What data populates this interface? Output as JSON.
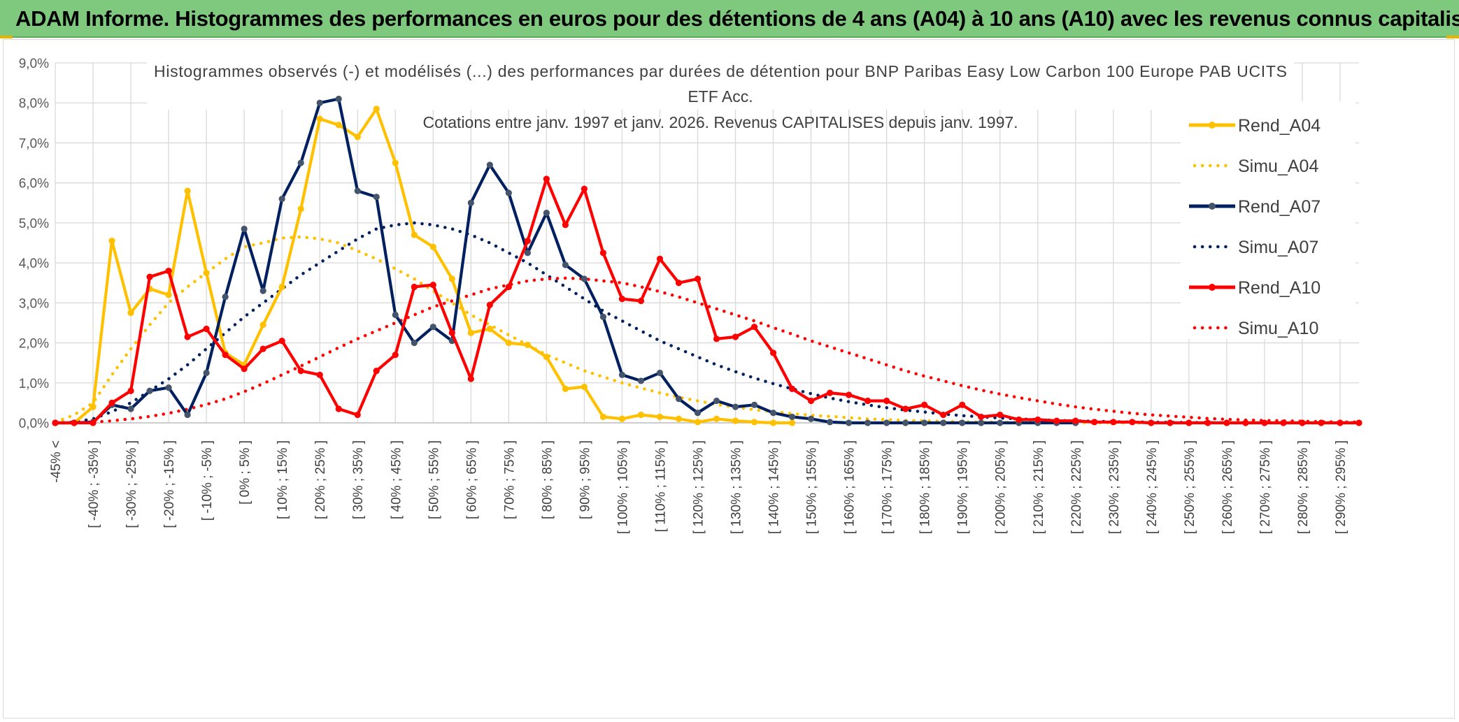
{
  "header": {
    "title": "ADAM Informe. Histogrammes des performances en euros pour des détentions de 4 ans (A04) à 10 ans (A10) avec les revenus connus capitalisés"
  },
  "chart_data": {
    "type": "line",
    "title_lines": [
      "Histogrammes observés (-) et modélisés (...) des performances par durées de détention pour BNP Paribas Easy Low Carbon 100 Europe PAB UCITS",
      "ETF Acc.",
      "Cotations entre janv. 1997 et janv. 2026. Revenus CAPITALISES depuis janv. 1997."
    ],
    "ylim": [
      0,
      9
    ],
    "y_ticks": [
      "0,0%",
      "1,0%",
      "2,0%",
      "3,0%",
      "4,0%",
      "5,0%",
      "6,0%",
      "7,0%",
      "8,0%",
      "9,0%"
    ],
    "grid": true,
    "legend_position": "top-right",
    "x_labels": [
      "-45% <",
      "[ -40% ; -35% ]",
      "[ -30% ; -25% ]",
      "[ -20% ; -15% ]",
      "[ -10% ; -5% ]",
      "[ 0% ; 5% ]",
      "[ 10% ; 15% ]",
      "[ 20% ; 25% ]",
      "[ 30% ; 35% ]",
      "[ 40% ; 45% ]",
      "[ 50% ; 55% ]",
      "[ 60% ; 65% ]",
      "[ 70% ; 75% ]",
      "[ 80% ; 85% ]",
      "[ 90% ; 95% ]",
      "[ 100% ; 105% ]",
      "[ 110% ; 115% ]",
      "[ 120% ; 125% ]",
      "[ 130% ; 135% ]",
      "[ 140% ; 145% ]",
      "[ 150% ; 155% ]",
      "[ 160% ; 165% ]",
      "[ 170% ; 175% ]",
      "[ 180% ; 185% ]",
      "[ 190% ; 195% ]",
      "[ 200% ; 205% ]",
      "[ 210% ; 215% ]",
      "[ 220% ; 225% ]",
      "[ 230% ; 235% ]",
      "[ 240% ; 245% ]",
      "[ 250% ; 255% ]",
      "[ 260% ; 265% ]",
      "[ 270% ; 275% ]",
      "[ 280% ; 285% ]",
      "[ 290% ; 295% ]"
    ],
    "x_label_step": 2,
    "series": [
      {
        "name": "Rend_A04",
        "style": "solid",
        "marker": true,
        "color": "#ffc000",
        "values": [
          0,
          0,
          0.4,
          4.55,
          2.75,
          3.35,
          3.2,
          5.8,
          3.75,
          1.75,
          1.45,
          2.45,
          3.4,
          5.35,
          7.6,
          7.45,
          7.15,
          7.85,
          6.5,
          4.7,
          4.4,
          3.6,
          2.25,
          2.35,
          2.0,
          1.95,
          1.65,
          0.85,
          0.9,
          0.15,
          0.1,
          0.2,
          0.15,
          0.1,
          0.02,
          0.1,
          0.05,
          0.02,
          0,
          0
        ]
      },
      {
        "name": "Simu_A04",
        "style": "dotted",
        "marker": false,
        "color": "#ffc000",
        "values": [
          0.02,
          0.2,
          0.5,
          1.2,
          1.85,
          2.45,
          3.0,
          3.4,
          3.75,
          4.1,
          4.4,
          4.5,
          4.62,
          4.65,
          4.6,
          4.5,
          4.3,
          4.1,
          3.85,
          3.6,
          3.3,
          3.0,
          2.7,
          2.45,
          2.2,
          1.95,
          1.7,
          1.5,
          1.3,
          1.15,
          1.0,
          0.87,
          0.75,
          0.64,
          0.55,
          0.46,
          0.39,
          0.33,
          0.28,
          0.23,
          0.19,
          0.16,
          0.13,
          0.1,
          0.08,
          0.06,
          0.05,
          0.04,
          0.03,
          0.02,
          0.02,
          0.01,
          0.01,
          0.01,
          0.005,
          0,
          0,
          0,
          0,
          0,
          0,
          0,
          0,
          0,
          0,
          0,
          0,
          0,
          0,
          0
        ]
      },
      {
        "name": "Rend_A07",
        "style": "solid",
        "marker": true,
        "color": "#002060",
        "values": [
          0,
          0,
          0.02,
          0.45,
          0.35,
          0.8,
          0.88,
          0.2,
          1.25,
          3.15,
          4.85,
          3.3,
          5.6,
          6.5,
          8.0,
          8.1,
          5.8,
          5.65,
          2.7,
          2.0,
          2.4,
          2.05,
          5.5,
          6.45,
          5.75,
          4.25,
          5.25,
          3.95,
          3.6,
          2.65,
          1.2,
          1.05,
          1.25,
          0.6,
          0.25,
          0.55,
          0.4,
          0.45,
          0.25,
          0.15,
          0.1,
          0.02,
          0,
          0,
          0,
          0,
          0,
          0,
          0,
          0,
          0,
          0,
          0,
          0,
          0
        ]
      },
      {
        "name": "Simu_A07",
        "style": "dotted",
        "marker": false,
        "color": "#002060",
        "values": [
          0,
          0.02,
          0.1,
          0.28,
          0.5,
          0.8,
          1.1,
          1.45,
          1.85,
          2.25,
          2.65,
          3.0,
          3.35,
          3.7,
          4.0,
          4.3,
          4.6,
          4.85,
          4.95,
          5.0,
          4.95,
          4.85,
          4.7,
          4.5,
          4.25,
          4.0,
          3.7,
          3.4,
          3.1,
          2.8,
          2.55,
          2.3,
          2.05,
          1.85,
          1.65,
          1.45,
          1.28,
          1.12,
          0.98,
          0.85,
          0.73,
          0.62,
          0.53,
          0.45,
          0.38,
          0.32,
          0.27,
          0.22,
          0.18,
          0.15,
          0.12,
          0.1,
          0.08,
          0.06,
          0.05,
          0.04,
          0.03,
          0.02,
          0.02,
          0.01,
          0.01,
          0.005,
          0,
          0,
          0,
          0,
          0,
          0,
          0,
          0
        ]
      },
      {
        "name": "Rend_A10",
        "style": "solid",
        "marker": true,
        "color": "#ff0000",
        "values": [
          0,
          0,
          0,
          0.5,
          0.8,
          3.65,
          3.8,
          2.15,
          2.35,
          1.7,
          1.35,
          1.85,
          2.05,
          1.3,
          1.2,
          0.35,
          0.2,
          1.3,
          1.7,
          3.4,
          3.45,
          2.25,
          1.1,
          2.95,
          3.4,
          4.55,
          6.1,
          4.95,
          5.85,
          4.25,
          3.1,
          3.05,
          4.1,
          3.5,
          3.6,
          2.1,
          2.15,
          2.4,
          1.75,
          0.85,
          0.55,
          0.75,
          0.7,
          0.55,
          0.55,
          0.35,
          0.45,
          0.2,
          0.45,
          0.15,
          0.2,
          0.08,
          0.08,
          0.05,
          0.05,
          0.02,
          0.02,
          0.02,
          0,
          0,
          0,
          0,
          0,
          0,
          0,
          0,
          0,
          0,
          0,
          0
        ]
      },
      {
        "name": "Simu_A10",
        "style": "dotted",
        "marker": false,
        "color": "#ff0000",
        "values": [
          0,
          0,
          0.02,
          0.05,
          0.1,
          0.16,
          0.24,
          0.34,
          0.46,
          0.6,
          0.78,
          0.98,
          1.2,
          1.42,
          1.65,
          1.88,
          2.1,
          2.3,
          2.5,
          2.7,
          2.9,
          3.05,
          3.2,
          3.35,
          3.45,
          3.55,
          3.6,
          3.62,
          3.6,
          3.55,
          3.5,
          3.4,
          3.28,
          3.15,
          3.0,
          2.85,
          2.7,
          2.55,
          2.38,
          2.22,
          2.05,
          1.9,
          1.75,
          1.6,
          1.45,
          1.3,
          1.17,
          1.05,
          0.93,
          0.82,
          0.72,
          0.63,
          0.55,
          0.47,
          0.4,
          0.34,
          0.29,
          0.24,
          0.2,
          0.17,
          0.14,
          0.11,
          0.09,
          0.07,
          0.06,
          0.05,
          0.04,
          0.03,
          0.02,
          0.02
        ]
      }
    ]
  }
}
